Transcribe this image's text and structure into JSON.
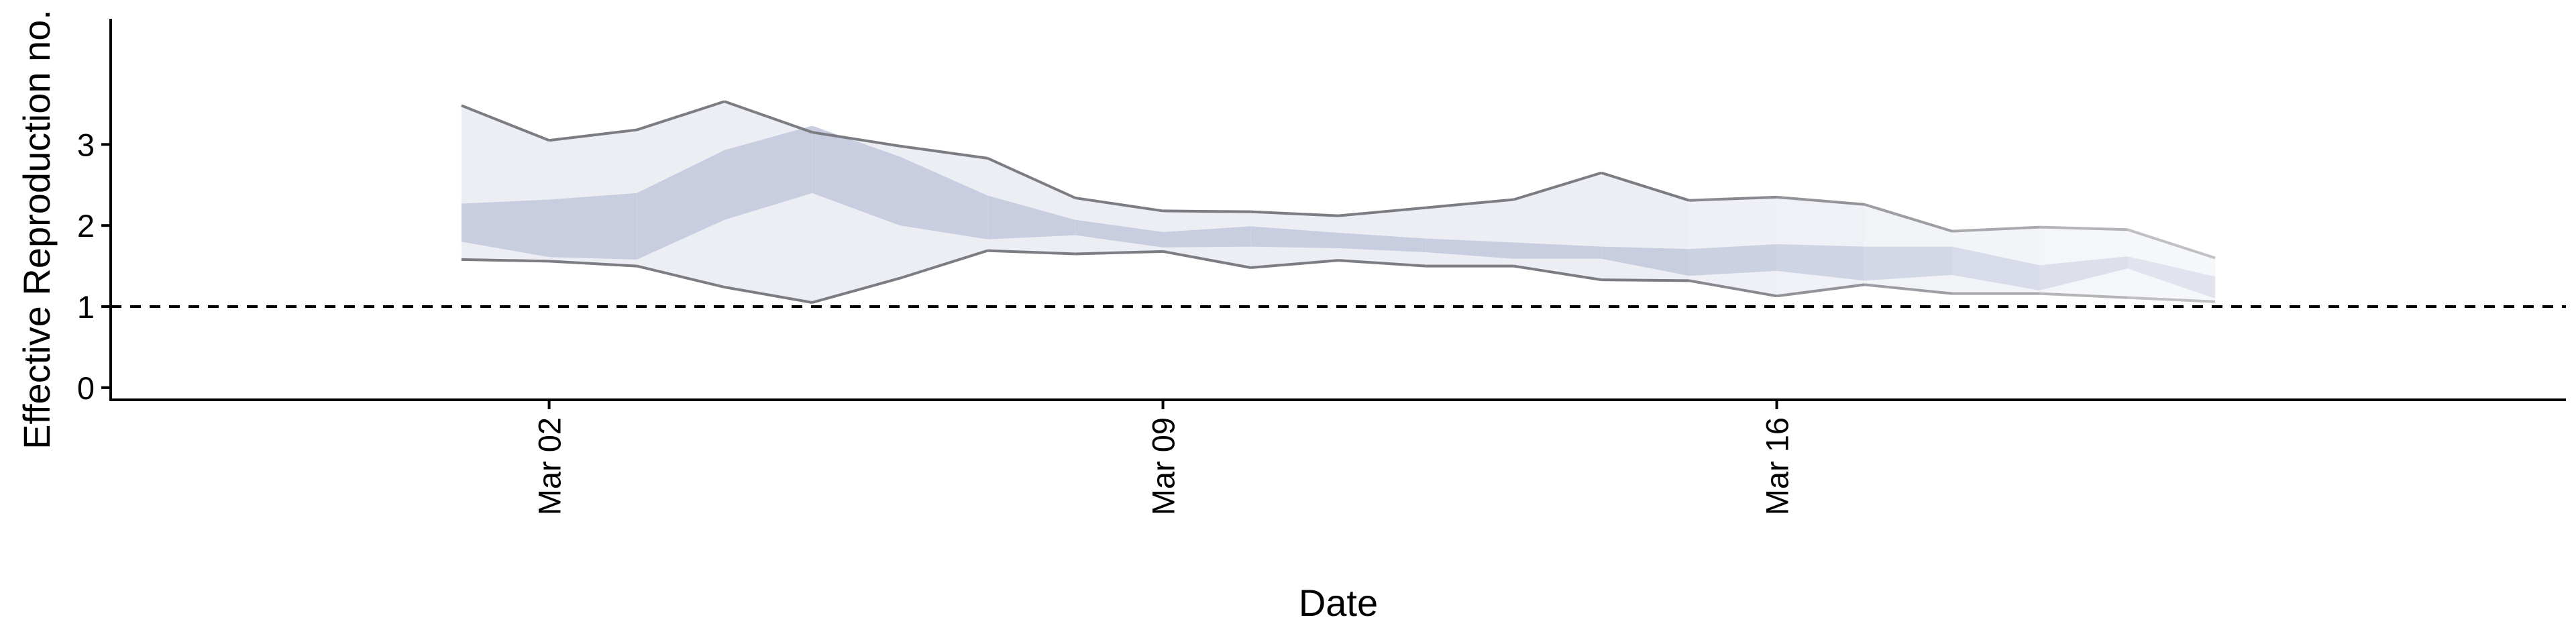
{
  "chart_data": {
    "type": "area",
    "title": "",
    "xlabel": "Date",
    "ylabel": "Effective Reproduction no.",
    "ylim": [
      -0.15,
      4.55
    ],
    "yticks": [
      0,
      1,
      2,
      3
    ],
    "xlim": [
      "2020-02-26",
      "2020-03-25"
    ],
    "xticks": [
      {
        "date": "2020-03-02",
        "label": "Mar 02"
      },
      {
        "date": "2020-03-09",
        "label": "Mar 09"
      },
      {
        "date": "2020-03-16",
        "label": "Mar 16"
      }
    ],
    "reference_line": {
      "y": 1,
      "style": "dashed"
    },
    "grid": false,
    "dates": [
      "2020-03-01",
      "2020-03-02",
      "2020-03-03",
      "2020-03-04",
      "2020-03-05",
      "2020-03-06",
      "2020-03-07",
      "2020-03-08",
      "2020-03-09",
      "2020-03-10",
      "2020-03-11",
      "2020-03-12",
      "2020-03-13",
      "2020-03-14",
      "2020-03-15",
      "2020-03-16",
      "2020-03-17",
      "2020-03-18",
      "2020-03-19",
      "2020-03-20",
      "2020-03-21"
    ],
    "series": [
      {
        "role": "upper_90",
        "values": [
          3.48,
          3.05,
          3.18,
          3.53,
          3.15,
          2.98,
          2.83,
          2.34,
          2.18,
          2.17,
          2.12,
          2.22,
          2.32,
          2.65,
          2.31,
          2.35,
          2.26,
          1.93,
          1.98,
          1.95,
          1.6
        ]
      },
      {
        "role": "upper_50",
        "values": [
          2.27,
          2.32,
          2.4,
          2.93,
          3.23,
          2.85,
          2.37,
          2.07,
          1.92,
          1.99,
          1.91,
          1.84,
          1.79,
          1.74,
          1.71,
          1.77,
          1.74,
          1.74,
          1.51,
          1.62,
          1.37
        ]
      },
      {
        "role": "lower_50",
        "values": [
          1.8,
          1.61,
          1.58,
          2.07,
          2.4,
          2.0,
          1.83,
          1.88,
          1.73,
          1.74,
          1.72,
          1.67,
          1.59,
          1.59,
          1.38,
          1.44,
          1.32,
          1.39,
          1.2,
          1.47,
          1.1
        ]
      },
      {
        "role": "lower_90",
        "values": [
          1.58,
          1.56,
          1.5,
          1.24,
          1.05,
          1.35,
          1.69,
          1.65,
          1.68,
          1.48,
          1.57,
          1.5,
          1.5,
          1.33,
          1.32,
          1.13,
          1.27,
          1.16,
          1.16,
          1.11,
          1.06
        ]
      }
    ],
    "colors": {
      "band_outer": "#eceef4",
      "band_inner": "#c8cde0",
      "line": "#7c7c83",
      "axis": "#000000"
    }
  }
}
